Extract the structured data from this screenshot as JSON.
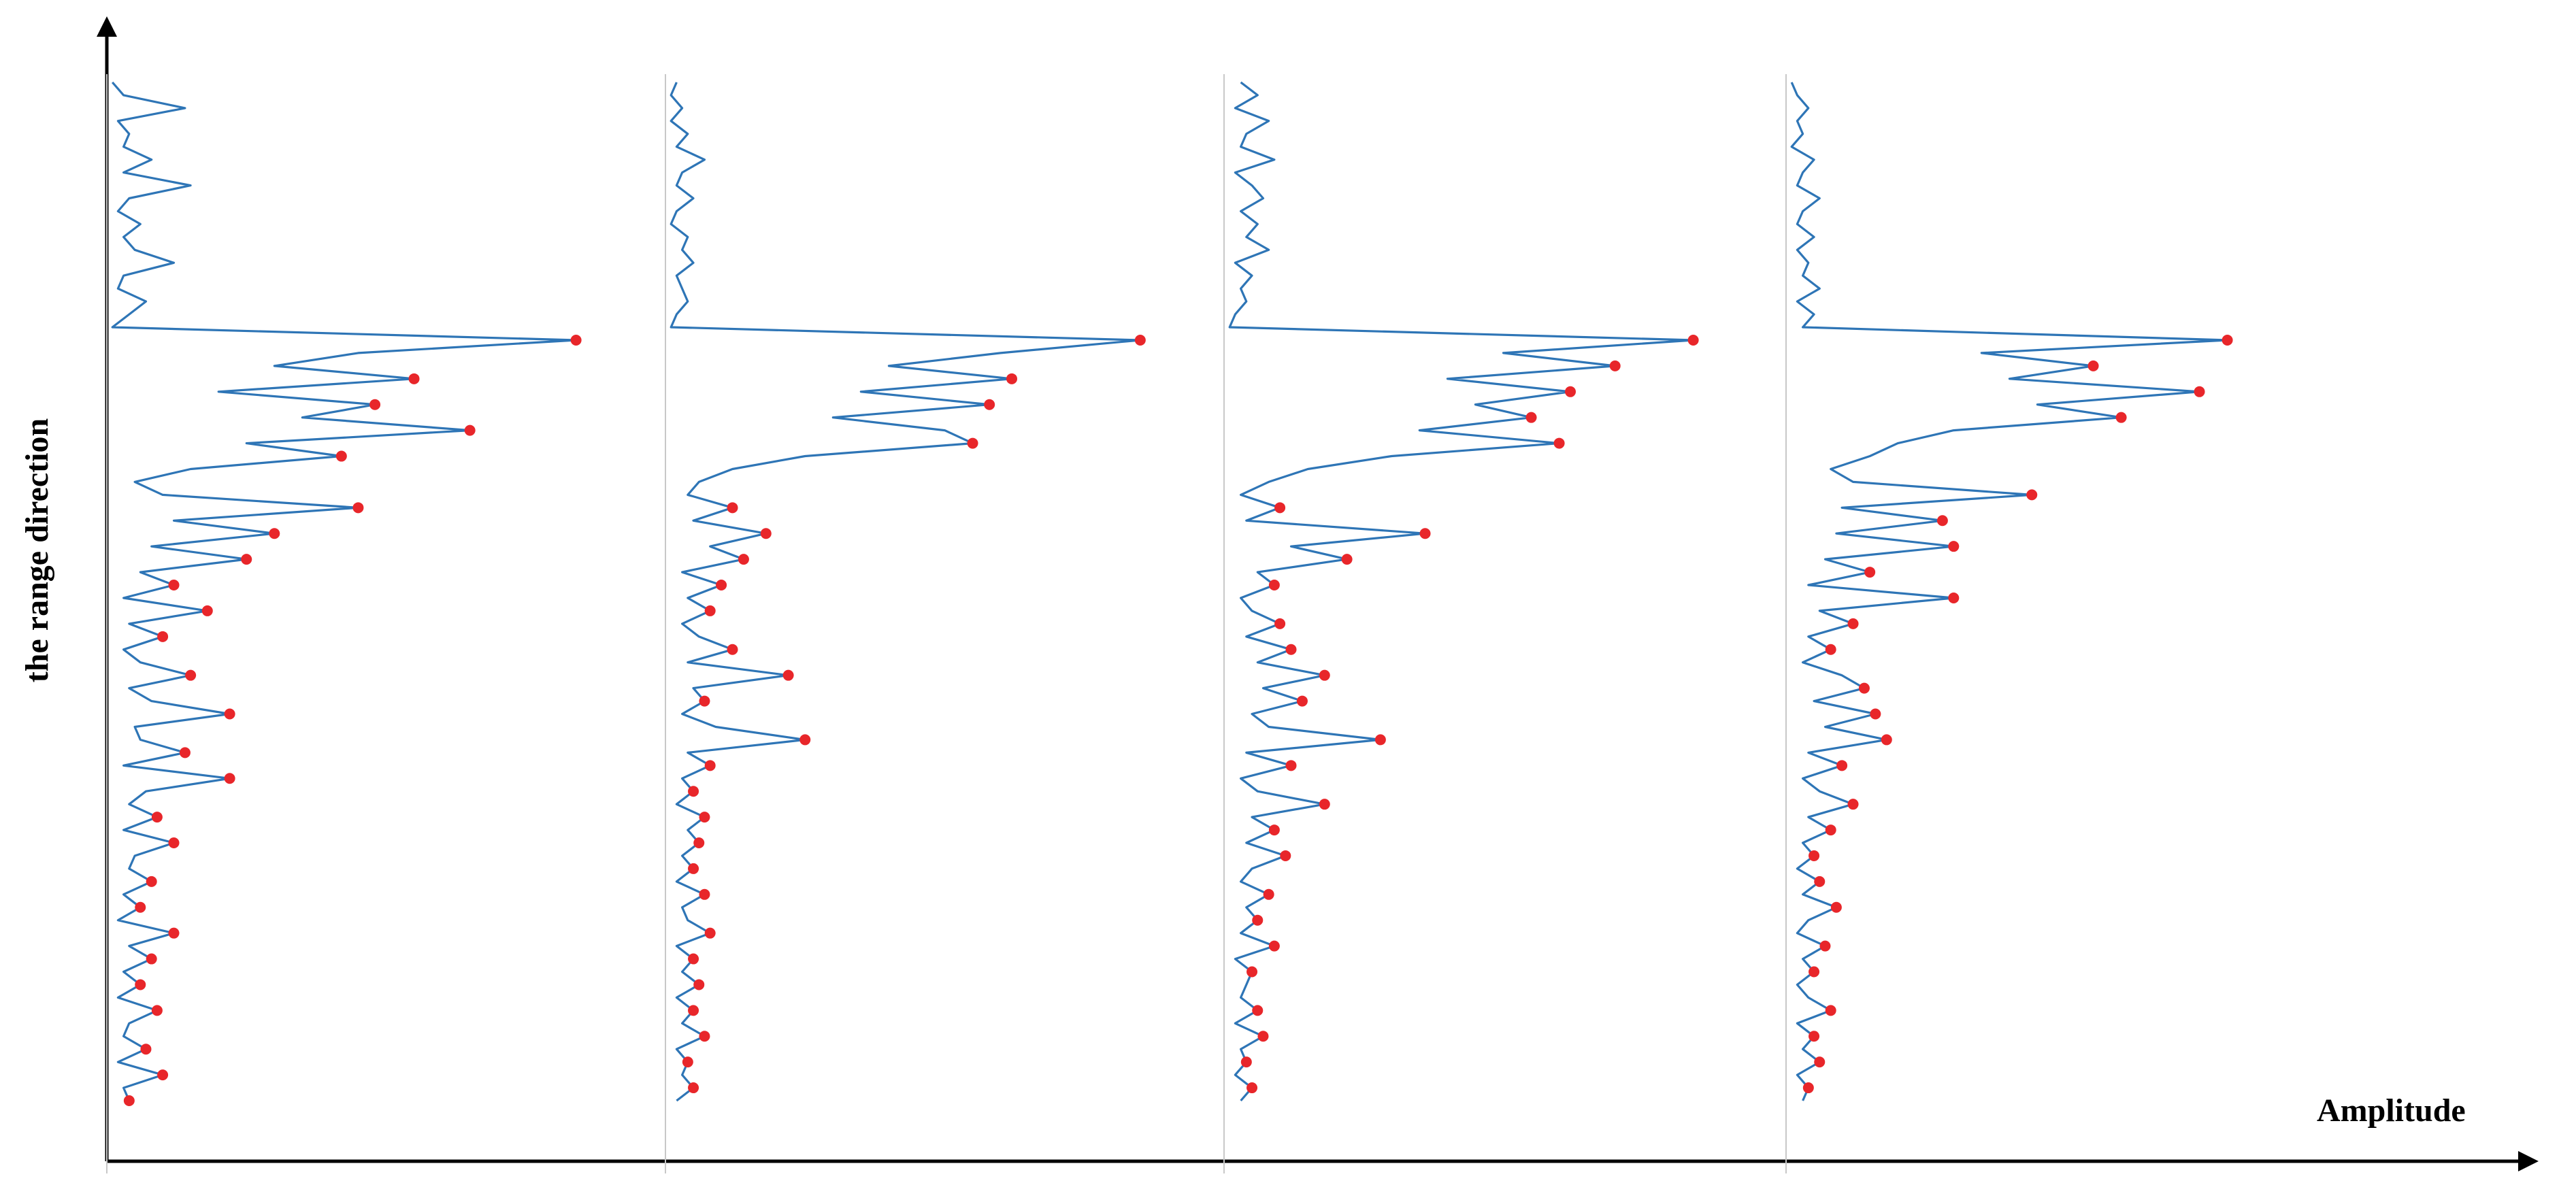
{
  "chart_data": {
    "type": "line",
    "x_label": "Amplitude",
    "y_label": "the range direction",
    "xlim": [
      0,
      100
    ],
    "peak_color": "#e8262a",
    "series": [
      {
        "color": "#2e75b6",
        "values": [
          1,
          3,
          14,
          2,
          4,
          3,
          8,
          3,
          15,
          4,
          2,
          6,
          3,
          5,
          12,
          3,
          2,
          7,
          4,
          1,
          84,
          45,
          30,
          55,
          20,
          48,
          35,
          65,
          25,
          42,
          15,
          5,
          10,
          45,
          12,
          30,
          8,
          25,
          6,
          12,
          3,
          18,
          4,
          10,
          3,
          6,
          15,
          4,
          8,
          22,
          5,
          6,
          14,
          3,
          22,
          7,
          4,
          9,
          3,
          12,
          5,
          4,
          8,
          3,
          6,
          2,
          12,
          4,
          8,
          3,
          6,
          2,
          9,
          4,
          3,
          7,
          2,
          10,
          3,
          4
        ],
        "peaks": [
          20,
          23,
          25,
          27,
          29,
          33,
          35,
          37,
          39,
          41,
          43,
          46,
          49,
          52,
          54,
          57,
          59,
          62,
          64,
          66,
          68,
          70,
          72,
          75,
          77,
          79
        ]
      },
      {
        "color": "#2e75b6",
        "values": [
          2,
          1,
          3,
          1,
          4,
          2,
          7,
          3,
          2,
          5,
          2,
          1,
          4,
          3,
          5,
          2,
          3,
          4,
          2,
          1,
          85,
          60,
          40,
          62,
          35,
          58,
          30,
          50,
          55,
          25,
          12,
          6,
          4,
          12,
          5,
          18,
          8,
          14,
          3,
          10,
          4,
          8,
          3,
          6,
          12,
          4,
          22,
          5,
          7,
          3,
          9,
          25,
          4,
          8,
          3,
          5,
          2,
          7,
          4,
          6,
          3,
          5,
          2,
          7,
          3,
          4,
          8,
          2,
          5,
          3,
          6,
          2,
          5,
          3,
          7,
          2,
          4,
          3,
          5,
          2
        ],
        "peaks": [
          20,
          23,
          25,
          28,
          33,
          35,
          37,
          39,
          41,
          44,
          46,
          48,
          51,
          53,
          55,
          57,
          59,
          61,
          63,
          66,
          68,
          70,
          72,
          74,
          76,
          78
        ]
      },
      {
        "color": "#2e75b6",
        "values": [
          3,
          6,
          2,
          8,
          4,
          3,
          9,
          2,
          5,
          7,
          3,
          6,
          4,
          8,
          2,
          5,
          3,
          4,
          2,
          1,
          84,
          50,
          70,
          40,
          62,
          45,
          55,
          35,
          60,
          30,
          15,
          8,
          3,
          10,
          4,
          36,
          12,
          22,
          6,
          9,
          3,
          5,
          10,
          4,
          12,
          6,
          18,
          7,
          14,
          5,
          8,
          28,
          4,
          12,
          3,
          6,
          18,
          5,
          9,
          4,
          11,
          5,
          3,
          8,
          4,
          6,
          3,
          9,
          2,
          5,
          4,
          3,
          6,
          2,
          7,
          3,
          4,
          2,
          5,
          3
        ],
        "peaks": [
          20,
          22,
          24,
          26,
          28,
          33,
          35,
          37,
          39,
          42,
          44,
          46,
          48,
          51,
          53,
          56,
          58,
          60,
          63,
          65,
          67,
          69,
          72,
          74,
          76,
          78
        ]
      },
      {
        "color": "#2e75b6",
        "values": [
          1,
          2,
          4,
          2,
          3,
          1,
          5,
          3,
          2,
          6,
          3,
          2,
          5,
          2,
          4,
          3,
          6,
          2,
          5,
          3,
          79,
          35,
          55,
          40,
          74,
          45,
          60,
          30,
          20,
          15,
          8,
          12,
          44,
          10,
          28,
          9,
          30,
          7,
          15,
          4,
          30,
          6,
          12,
          4,
          8,
          3,
          10,
          14,
          5,
          16,
          7,
          18,
          4,
          10,
          3,
          6,
          12,
          4,
          8,
          3,
          5,
          2,
          6,
          3,
          9,
          4,
          2,
          7,
          3,
          5,
          2,
          4,
          8,
          2,
          5,
          3,
          6,
          2,
          4,
          3
        ],
        "peaks": [
          20,
          22,
          24,
          26,
          32,
          34,
          36,
          38,
          40,
          42,
          44,
          47,
          49,
          51,
          53,
          56,
          58,
          60,
          62,
          64,
          67,
          69,
          72,
          74,
          76,
          78
        ]
      }
    ]
  }
}
